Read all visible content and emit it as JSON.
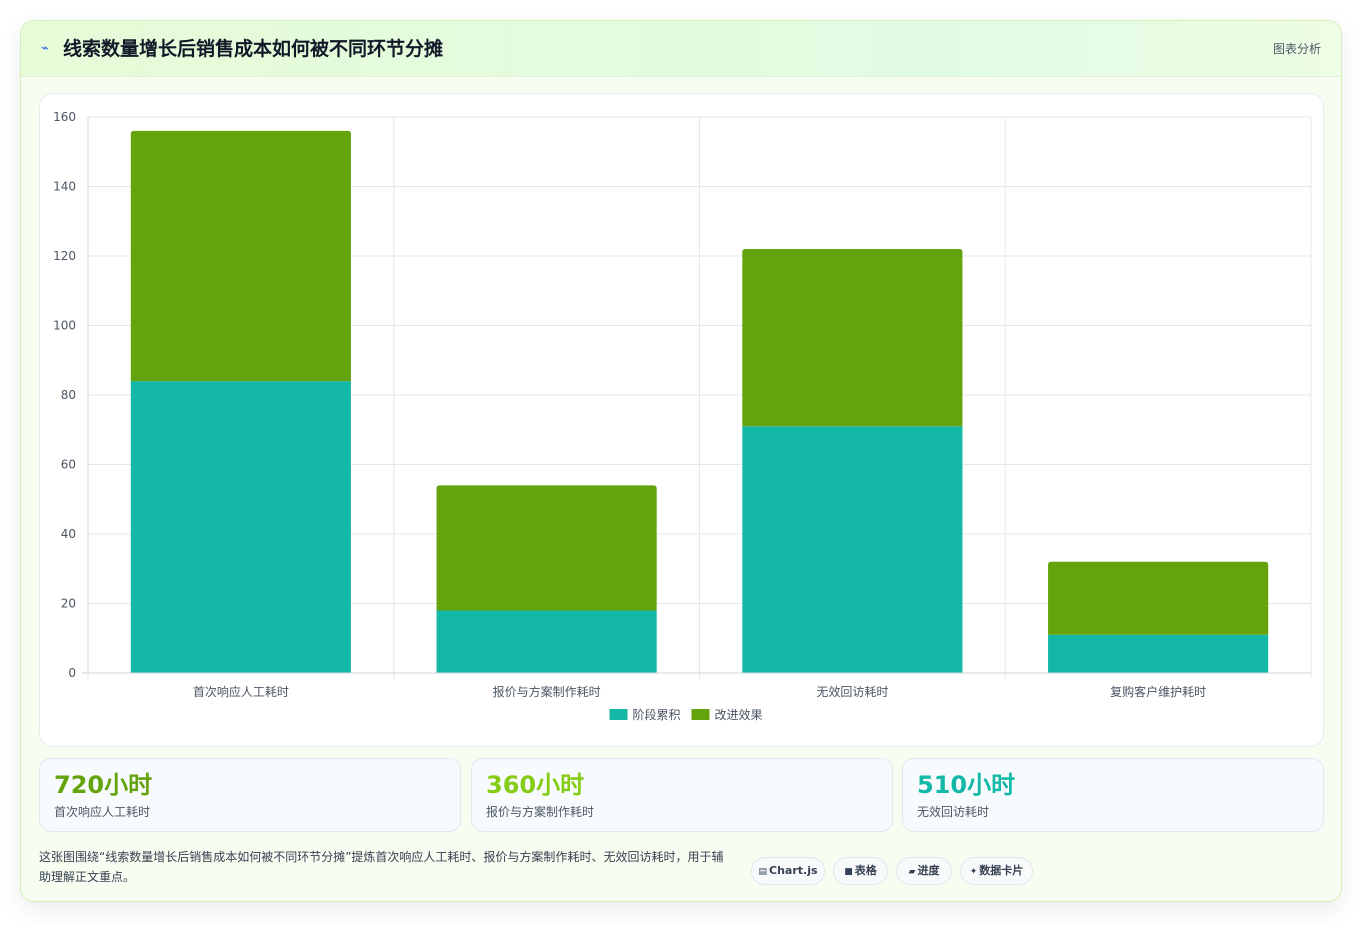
{
  "header": {
    "title": "线索数量增长后销售成本如何被不同环节分摊",
    "icon": "chart-line-icon",
    "right_label": "图表分析"
  },
  "chart_data": {
    "type": "bar",
    "stacked": true,
    "categories": [
      "首次响应人工耗时",
      "报价与方案制作耗时",
      "无效回访耗时",
      "复购客户维护耗时"
    ],
    "series": [
      {
        "name": "阶段累积",
        "values": [
          84,
          18,
          71,
          11
        ],
        "color": "#14b8a6"
      },
      {
        "name": "改进效果",
        "values": [
          72,
          36,
          51,
          21
        ],
        "color": "#65a30d"
      }
    ],
    "yticks": [
      0,
      20,
      40,
      60,
      80,
      100,
      120,
      140,
      160
    ],
    "ylim": [
      0,
      160
    ],
    "grid": true,
    "legend_position": "bottom"
  },
  "kpis": [
    {
      "value": "720小时",
      "label": "首次响应人工耗时",
      "color": "#65a30d"
    },
    {
      "value": "360小时",
      "label": "报价与方案制作耗时",
      "color": "#84cc16"
    },
    {
      "value": "510小时",
      "label": "无效回访耗时",
      "color": "#14b8a6"
    }
  ],
  "description": "这张图围绕“线索数量增长后销售成本如何被不同环节分摊”提炼首次响应人工耗时、报价与方案制作耗时、无效回访耗时，用于辅助理解正文重点。",
  "tags": [
    {
      "icon": "chart-icon",
      "glyph": "▤",
      "label": "Chart.js"
    },
    {
      "icon": "table-icon",
      "glyph": "■",
      "label": "表格"
    },
    {
      "icon": "progress-icon",
      "glyph": "▰",
      "label": "进度"
    },
    {
      "icon": "sparkle-icon",
      "glyph": "✦",
      "label": "数据卡片"
    }
  ]
}
